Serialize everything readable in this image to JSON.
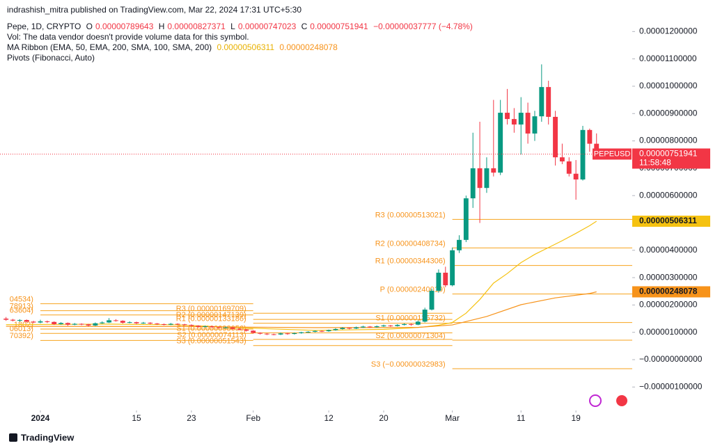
{
  "header": {
    "publisher": "indrashish_mitra published on TradingView.com, Mar 22, 2024 17:31 UTC+5:30",
    "symbol": "Pepe, 1D, CRYPTO",
    "ohlc": [
      {
        "label": "O",
        "value": "0.00000789643"
      },
      {
        "label": "H",
        "value": "0.00000827371"
      },
      {
        "label": "L",
        "value": "0.00000747023"
      },
      {
        "label": "C",
        "value": "0.00000751941"
      }
    ],
    "change": "−0.00000037777 (−4.78%)",
    "vol": "Vol: The data vendor doesn't provide volume data for this symbol.",
    "ma_ribbon": {
      "name": "MA Ribbon (EMA, 50, EMA, 200, SMA, 100, SMA, 200)",
      "values": [
        "0.00000506311",
        "0.00000248078"
      ]
    },
    "pivots": "Pivots (Fibonacci, Auto)"
  },
  "chart_data": {
    "type": "candlestick",
    "x": [
      -5,
      -4,
      -3,
      -2,
      -1,
      0,
      1,
      2,
      3,
      4,
      5,
      6,
      7,
      8,
      9,
      10,
      11,
      12,
      13,
      14,
      15,
      16,
      17,
      18,
      19,
      20,
      21,
      22,
      23,
      24,
      25,
      26,
      27,
      28,
      29,
      30,
      31,
      32,
      33,
      34,
      35,
      36,
      37,
      38,
      39,
      40,
      41,
      42,
      43,
      44,
      45,
      46,
      47,
      48,
      49,
      50,
      51,
      52,
      53,
      54,
      55,
      56,
      57,
      58,
      59,
      60,
      61,
      62,
      63,
      64,
      65,
      66,
      67,
      68,
      69,
      70,
      71,
      72,
      73,
      74,
      75,
      76,
      77,
      78,
      79,
      80,
      81
    ],
    "open": [
      1.5e-06,
      1.46e-06,
      1.43e-06,
      1.45e-06,
      1.39e-06,
      1.36e-06,
      1.4e-06,
      1.38e-06,
      1.3e-06,
      1.34e-06,
      1.28e-06,
      1.31e-06,
      1.29e-06,
      1.25e-06,
      1.33e-06,
      1.36e-06,
      1.44e-06,
      1.42e-06,
      1.35e-06,
      1.37e-06,
      1.33e-06,
      1.35e-06,
      1.32e-06,
      1.3e-06,
      1.28e-06,
      1.31e-06,
      1.29e-06,
      1.27e-06,
      1.24e-06,
      1.2e-06,
      1.22e-06,
      1.19e-06,
      1.17e-06,
      1.18e-06,
      1.13e-06,
      1.1e-06,
      1.06e-06,
      9.8e-07,
      9.5e-07,
      9.3e-07,
      9.2e-07,
      9.6e-07,
      9.4e-07,
      9.7e-07,
      1e-06,
      1.02e-06,
      1.05e-06,
      1.04e-06,
      1.08e-06,
      1.12e-06,
      1.16e-06,
      1.14e-06,
      1.18e-06,
      1.21e-06,
      1.19e-06,
      1.22e-06,
      1.25e-06,
      1.23e-06,
      1.27e-06,
      1.3e-06,
      1.28e-06,
      1.39e-06,
      1.83e-06,
      2.52e-06,
      3.18e-06,
      2.72e-06,
      4e-06,
      4.38e-06,
      5.9e-06,
      7e-06,
      6.28e-06,
      7e-06,
      6.84e-06,
      9.03e-06,
      8.8e-06,
      8.6e-06,
      9.03e-06,
      8.27e-06,
      8.9e-06,
      9.97e-06,
      8.88e-06,
      7.4e-06,
      7.25e-06,
      6.8e-06,
      6.59e-06,
      8.4e-06,
      7.89643e-06
    ],
    "high": [
      1.56e-06,
      1.49e-06,
      1.48e-06,
      1.47e-06,
      1.42e-06,
      1.46e-06,
      1.43e-06,
      1.4e-06,
      1.37e-06,
      1.36e-06,
      1.34e-06,
      1.33e-06,
      1.31e-06,
      1.36e-06,
      1.4e-06,
      1.52e-06,
      1.48e-06,
      1.44e-06,
      1.4e-06,
      1.39e-06,
      1.38e-06,
      1.37e-06,
      1.34e-06,
      1.32e-06,
      1.34e-06,
      1.33e-06,
      1.31e-06,
      1.29e-06,
      1.26e-06,
      1.25e-06,
      1.24e-06,
      1.21e-06,
      1.21e-06,
      1.2e-06,
      1.15e-06,
      1.12e-06,
      1.08e-06,
      1e-06,
      9.7e-07,
      9.5e-07,
      9.9e-07,
      9.8e-07,
      9.9e-07,
      1.02e-06,
      1.04e-06,
      1.07e-06,
      1.07e-06,
      1.1e-06,
      1.15e-06,
      1.19e-06,
      1.18e-06,
      1.21e-06,
      1.24e-06,
      1.23e-06,
      1.25e-06,
      1.28e-06,
      1.27e-06,
      1.3e-06,
      1.33e-06,
      1.32e-06,
      1.43e-06,
      1.9e-06,
      2.6e-06,
      3.3e-06,
      3.4e-06,
      4.1e-06,
      4.55e-06,
      6e-06,
      8.3e-06,
      8.7e-06,
      7.4e-06,
      9.5e-06,
      9.5e-06,
      9.9e-06,
      9.2e-06,
      9.6e-06,
      9.4e-06,
      9.1e-06,
      1.08e-05,
      1.02e-05,
      9.1e-06,
      7.9e-06,
      7.4e-06,
      7.3e-06,
      8.55e-06,
      8.45e-06,
      8.27371e-06
    ],
    "low": [
      1.42e-06,
      1.4e-06,
      1.38e-06,
      1.36e-06,
      1.33e-06,
      1.33e-06,
      1.34e-06,
      1.27e-06,
      1.28e-06,
      1.24e-06,
      1.26e-06,
      1.26e-06,
      1.21e-06,
      1.23e-06,
      1.31e-06,
      1.34e-06,
      1.39e-06,
      1.32e-06,
      1.33e-06,
      1.3e-06,
      1.31e-06,
      1.29e-06,
      1.27e-06,
      1.25e-06,
      1.26e-06,
      1.26e-06,
      1.24e-06,
      1.21e-06,
      1.17e-06,
      1.18e-06,
      1.16e-06,
      1.14e-06,
      1.15e-06,
      1.1e-06,
      1.07e-06,
      1.03e-06,
      9.5e-07,
      9.2e-07,
      9e-07,
      8.9e-07,
      9e-07,
      9.1e-07,
      9.2e-07,
      9.5e-07,
      9.8e-07,
      1e-06,
      1.01e-06,
      1.02e-06,
      1.06e-06,
      1.1e-06,
      1.11e-06,
      1.12e-06,
      1.16e-06,
      1.16e-06,
      1.17e-06,
      1.2e-06,
      1.2e-06,
      1.21e-06,
      1.25e-06,
      1.24e-06,
      1.26e-06,
      1.36e-06,
      1.8e-06,
      2.45e-06,
      2.65e-06,
      2.68e-06,
      3.9e-06,
      4.3e-06,
      5.55e-06,
      5e-06,
      6.1e-06,
      6.7e-06,
      6.75e-06,
      8.6e-06,
      8.3e-06,
      7.5e-06,
      7.9e-06,
      8e-06,
      8.7e-06,
      8.6e-06,
      7.1e-06,
      7.15e-06,
      6.7e-06,
      5.85e-06,
      6.55e-06,
      7.6e-06,
      7.47023e-06
    ],
    "close": [
      1.46e-06,
      1.43e-06,
      1.45e-06,
      1.39e-06,
      1.36e-06,
      1.4e-06,
      1.38e-06,
      1.3e-06,
      1.34e-06,
      1.28e-06,
      1.31e-06,
      1.29e-06,
      1.25e-06,
      1.33e-06,
      1.36e-06,
      1.44e-06,
      1.42e-06,
      1.35e-06,
      1.37e-06,
      1.33e-06,
      1.35e-06,
      1.32e-06,
      1.3e-06,
      1.28e-06,
      1.31e-06,
      1.29e-06,
      1.27e-06,
      1.24e-06,
      1.2e-06,
      1.22e-06,
      1.19e-06,
      1.17e-06,
      1.18e-06,
      1.13e-06,
      1.1e-06,
      1.06e-06,
      9.8e-07,
      9.5e-07,
      9.3e-07,
      9.2e-07,
      9.6e-07,
      9.4e-07,
      9.7e-07,
      1e-06,
      1.02e-06,
      1.05e-06,
      1.04e-06,
      1.08e-06,
      1.12e-06,
      1.16e-06,
      1.14e-06,
      1.18e-06,
      1.21e-06,
      1.19e-06,
      1.22e-06,
      1.25e-06,
      1.23e-06,
      1.27e-06,
      1.3e-06,
      1.28e-06,
      1.39e-06,
      1.83e-06,
      2.52e-06,
      3.18e-06,
      2.72e-06,
      4e-06,
      4.38e-06,
      5.9e-06,
      7e-06,
      6.28e-06,
      7e-06,
      6.84e-06,
      9.03e-06,
      8.8e-06,
      8.6e-06,
      9.03e-06,
      8.27e-06,
      8.9e-06,
      9.97e-06,
      8.88e-06,
      7.4e-06,
      7.25e-06,
      6.8e-06,
      6.59e-06,
      8.4e-06,
      7.89718e-06,
      7.51941e-06
    ],
    "up_color": "#089981",
    "down_color": "#f23645",
    "xlim": [
      -5.88,
      86.2
    ],
    "xticks": [
      {
        "value": 0,
        "label": "2024"
      },
      {
        "value": 14,
        "label": "15"
      },
      {
        "value": 22,
        "label": "23"
      },
      {
        "value": 31,
        "label": "Feb"
      },
      {
        "value": 42,
        "label": "12"
      },
      {
        "value": 50,
        "label": "20"
      },
      {
        "value": 60,
        "label": "Mar"
      },
      {
        "value": 70,
        "label": "11"
      },
      {
        "value": 78,
        "label": "19"
      }
    ],
    "ylim": [
      -1.857e-06,
      1.239e-05
    ],
    "yticks": [
      {
        "value": 1.2e-05,
        "label": "0.00001200000"
      },
      {
        "value": 1.1e-05,
        "label": "0.00001100000"
      },
      {
        "value": 1e-05,
        "label": "0.00001000000"
      },
      {
        "value": 9e-06,
        "label": "0.00000900000"
      },
      {
        "value": 8e-06,
        "label": "0.00000800000"
      },
      {
        "value": 7e-06,
        "label": "0.00000700000"
      },
      {
        "value": 6e-06,
        "label": "0.00000600000"
      },
      {
        "value": 5e-06,
        "label": "0.00000500000"
      },
      {
        "value": 4e-06,
        "label": "0.00000400000"
      },
      {
        "value": 3e-06,
        "label": "0.00000300000"
      },
      {
        "value": 2e-06,
        "label": "0.00000200000"
      },
      {
        "value": 1e-06,
        "label": "0.00000100000"
      },
      {
        "value": 0,
        "label": "−0.00000000000"
      },
      {
        "value": -1e-06,
        "label": "−0.00000100000"
      }
    ],
    "grid": false,
    "symbol": "PEPEUSD",
    "last_price_label": "0.00000751941",
    "countdown": "11:58:48",
    "ma_series": [
      {
        "color": "#f5c211",
        "x": [
          -5,
          10,
          20,
          31,
          40,
          50,
          54,
          56,
          58,
          60,
          62,
          64,
          66,
          68,
          70,
          72,
          74,
          76,
          78,
          80,
          81
        ],
        "values": [
          1.28e-06,
          1.3e-06,
          1.27e-06,
          1.15e-06,
          1.07e-06,
          1.11e-06,
          1.16e-06,
          1.2e-06,
          1.26e-06,
          1.36e-06,
          1.7e-06,
          2.2e-06,
          2.8e-06,
          3.15e-06,
          3.55e-06,
          3.85e-06,
          4.1e-06,
          4.35e-06,
          4.62e-06,
          4.9e-06,
          5.06311e-06
        ],
        "last_label": "0.00000506311"
      },
      {
        "color": "#f7931a",
        "x": [
          -5,
          20,
          40,
          55,
          60,
          65,
          70,
          75,
          80,
          81
        ],
        "values": [
          1.22e-06,
          1.21e-06,
          1.17e-06,
          1.18e-06,
          1.27e-06,
          1.58e-06,
          2.01e-06,
          2.26e-06,
          2.42e-06,
          2.48078e-06
        ],
        "last_label": "0.00000248078"
      }
    ],
    "pivot_color": "#f7a21b",
    "pivots": [
      {
        "start": 0,
        "end": 31,
        "levels": [
          {
            "value": 2.04534e-06,
            "label": "04534)"
          },
          {
            "value": 1.78913e-06,
            "label": "78913)"
          },
          {
            "value": 1.63604e-06,
            "label": "63604)"
          },
          {
            "value": 1.11802e-06,
            "label": "1802)"
          },
          {
            "value": 9.6013e-07,
            "label": "06013)"
          },
          {
            "value": 7.0392e-07,
            "label": "70392)"
          }
        ]
      },
      {
        "start": 31,
        "end": 60,
        "levels": [
          {
            "value": 1.69709e-06,
            "label": "R3 (0.00000169709)"
          },
          {
            "value": 1.47139e-06,
            "label": "R2 (0.00000147139)"
          },
          {
            "value": 1.33186e-06,
            "label": "R1 (0.00000133186)"
          },
          {
            "value": 9.8056e-07,
            "label": "S1 (0.00000098056)"
          },
          {
            "value": 7.4113e-07,
            "label": "S2 (0.00000074113)"
          },
          {
            "value": 5.1543e-07,
            "label": "S3 (0.00000051543)"
          }
        ]
      },
      {
        "start": 60,
        "end": 86.2,
        "levels": [
          {
            "value": 5.13021e-06,
            "label": "R3 (0.00000513021)"
          },
          {
            "value": 4.08734e-06,
            "label": "R2 (0.00000408734)"
          },
          {
            "value": 3.44306e-06,
            "label": "R1 (0.00000344306)"
          },
          {
            "value": 2.40019e-06,
            "label": "P (0.00000240019)"
          },
          {
            "value": 1.35732e-06,
            "label": "S1 (0.00000135732)"
          },
          {
            "value": 7.1304e-07,
            "label": "S2 (0.00000071304)"
          },
          {
            "value": -3.2983e-07,
            "label": "S3 (−0.00000032983)"
          }
        ]
      }
    ]
  },
  "footer": {
    "brand": "TradingView"
  }
}
